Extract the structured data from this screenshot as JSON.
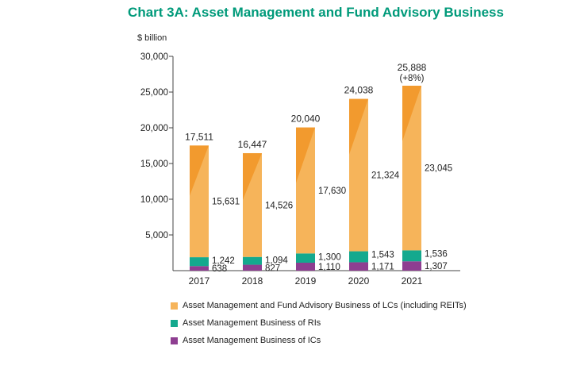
{
  "chart_data": {
    "type": "bar",
    "stacked": true,
    "title": "Chart 3A: Asset Management and Fund Advisory Business",
    "ylabel": "$ billion",
    "xlabel": "",
    "ylim": [
      0,
      30000
    ],
    "yticks": [
      "5,000",
      "10,000",
      "15,000",
      "20,000",
      "25,000",
      "30,000"
    ],
    "ytick_values": [
      5000,
      10000,
      15000,
      20000,
      25000,
      30000
    ],
    "categories": [
      "2017",
      "2018",
      "2019",
      "2020",
      "2021"
    ],
    "series": [
      {
        "name": "Asset Management Business of ICs",
        "color": "#8e3e91",
        "values": [
          638,
          827,
          1110,
          1171,
          1307
        ],
        "labels": [
          "638",
          "827",
          "1,110",
          "1,171",
          "1,307"
        ]
      },
      {
        "name": "Asset Management Business of RIs",
        "color": "#14a98e",
        "values": [
          1242,
          1094,
          1300,
          1543,
          1536
        ],
        "labels": [
          "1,242",
          "1,094",
          "1,300",
          "1,543",
          "1,536"
        ]
      },
      {
        "name": "Asset Management and Fund Advisory Business of LCs (including REITs)",
        "color": "#f6b45a",
        "values": [
          15631,
          14526,
          17630,
          21324,
          23045
        ],
        "labels": [
          "15,631",
          "14,526",
          "17,630",
          "21,324",
          "23,045"
        ]
      }
    ],
    "totals": [
      17511,
      16447,
      20040,
      24038,
      25888
    ],
    "total_labels": [
      "17,511",
      "16,447",
      "20,040",
      "24,038",
      "25,888"
    ],
    "annotations": [
      {
        "category": "2021",
        "text": "(+8%)"
      }
    ],
    "grid": false,
    "legend_position": "bottom"
  }
}
